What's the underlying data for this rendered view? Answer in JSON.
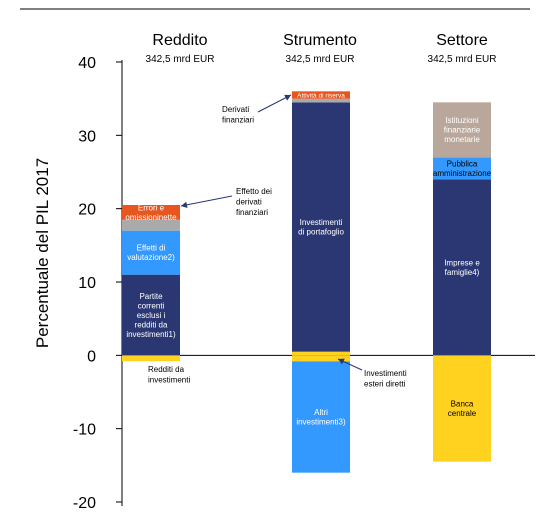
{
  "chart_data": {
    "type": "bar",
    "subtype": "stacked",
    "ylabel": "Percentuale del PIL 2017",
    "ylim": [
      -20,
      40
    ],
    "yticks": [
      -20,
      -10,
      0,
      10,
      20,
      30,
      40
    ],
    "colors": {
      "dark_navy": "#2b3773",
      "light_blue": "#3399ff",
      "orange": "#e8561f",
      "gray": "#aaaaaa",
      "taupe": "#b8a79a",
      "yellow": "#ffd21f",
      "axis": "#000000"
    },
    "groups": [
      {
        "key": "reddito",
        "title": "Reddito",
        "subtitle": "342,5 mrd EUR",
        "segments": [
          {
            "label": "Partite correnti esclusi i redditi da investimenti1)",
            "lines": [
              "Partite",
              "correnti",
              "esclusi i",
              "redditi da",
              "investimenti1)"
            ],
            "from": 0,
            "to": 11,
            "color": "dark_navy",
            "text": "#ffffff"
          },
          {
            "label": "Effetti di valutazione2)",
            "lines": [
              "Effetti di",
              "valutazione2)"
            ],
            "from": 11,
            "to": 17,
            "color": "light_blue",
            "text": "#ffffff"
          },
          {
            "label": "",
            "lines": [],
            "from": 17,
            "to": 18.5,
            "color": "gray",
            "text": "#ffffff"
          },
          {
            "label": "Errori e omissioninette",
            "lines": [
              "Errori e",
              "omissioninette"
            ],
            "from": 18.5,
            "to": 20.5,
            "color": "orange",
            "text": "#ffffff"
          },
          {
            "label": "",
            "lines": [],
            "from": -0.8,
            "to": 0,
            "color": "yellow",
            "text": "#000000"
          }
        ]
      },
      {
        "key": "strumento",
        "title": "Strumento",
        "subtitle": "342,5 mrd EUR",
        "segments": [
          {
            "label": "",
            "lines": [],
            "from": 0,
            "to": 0.5,
            "color": "yellow",
            "text": "#000000"
          },
          {
            "label": "Investimenti di portafoglio",
            "lines": [
              "Investimenti",
              "di portafoglio"
            ],
            "from": 0.5,
            "to": 34.5,
            "color": "dark_navy",
            "text": "#ffffff"
          },
          {
            "label": "",
            "lines": [],
            "from": 34.5,
            "to": 35,
            "color": "gray",
            "text": "#ffffff"
          },
          {
            "label": "Attività di riserva",
            "lines": [
              "Attività di riserva"
            ],
            "from": 35,
            "to": 36,
            "color": "orange",
            "text": "#ffffff"
          },
          {
            "label": "Altri investimenti3)",
            "lines": [
              "Altri",
              "investimenti3)"
            ],
            "from": -16,
            "to": -0.8,
            "color": "light_blue",
            "text": "#ffffff"
          },
          {
            "label": "",
            "lines": [],
            "from": -0.8,
            "to": 0,
            "color": "yellow",
            "text": "#000000"
          }
        ]
      },
      {
        "key": "settore",
        "title": "Settore",
        "subtitle": "342,5 mrd EUR",
        "segments": [
          {
            "label": "Imprese e famiglie4)",
            "lines": [
              "Imprese e",
              "famiglie4)"
            ],
            "from": 0,
            "to": 24,
            "color": "dark_navy",
            "text": "#ffffff"
          },
          {
            "label": "Pubblica amministrazione",
            "lines": [
              "Pubblica",
              "amministrazione"
            ],
            "from": 24,
            "to": 27,
            "color": "light_blue",
            "text": "#000000"
          },
          {
            "label": "Istituzioni finanziarie monetarie",
            "lines": [
              "Istituzioni",
              "finanziarie",
              "monetarie"
            ],
            "from": 27,
            "to": 34.5,
            "color": "taupe",
            "text": "#ffffff"
          },
          {
            "label": "Banca centrale",
            "lines": [
              "Banca",
              "centrale"
            ],
            "from": -14.5,
            "to": 0,
            "color": "yellow",
            "text": "#000000"
          }
        ]
      }
    ],
    "annotations": [
      {
        "key": "redditi-da-investimenti",
        "lines": [
          "Redditi da",
          "investimenti"
        ],
        "arrow": false
      },
      {
        "key": "effetto-derivati",
        "lines": [
          "Effetto dei",
          "derivati",
          "finanziari"
        ],
        "arrow": true
      },
      {
        "key": "derivati-finanziari",
        "lines": [
          "Derivati",
          "finanziari"
        ],
        "arrow": true
      },
      {
        "key": "investimenti-esteri-diretti",
        "lines": [
          "Investimenti",
          "esteri diretti"
        ],
        "arrow": true
      }
    ]
  }
}
